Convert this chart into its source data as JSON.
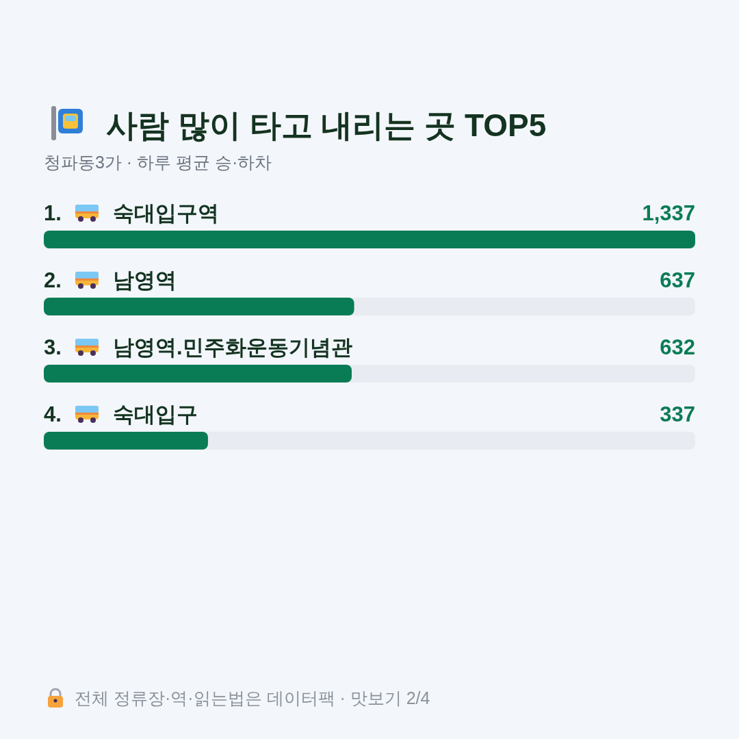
{
  "chart_data": {
    "type": "bar",
    "orientation": "horizontal",
    "title": "사람 많이 타고 내리는 곳 TOP5",
    "subtitle": "청파동3가 · 하루 평균 승·하차",
    "categories": [
      "1. 숙대입구역",
      "2. 남영역",
      "3. 남영역.민주화운동기념관",
      "4. 숙대입구"
    ],
    "values": [
      1337,
      637,
      632,
      337
    ],
    "value_labels": [
      "1,337",
      "637",
      "632",
      "337"
    ],
    "color": "#0a7c55",
    "xlim": [
      0,
      1337
    ],
    "annotations": [
      "전체 정류장·역·읽는법은 데이터팩 · 맛보기 2/4"
    ]
  }
}
